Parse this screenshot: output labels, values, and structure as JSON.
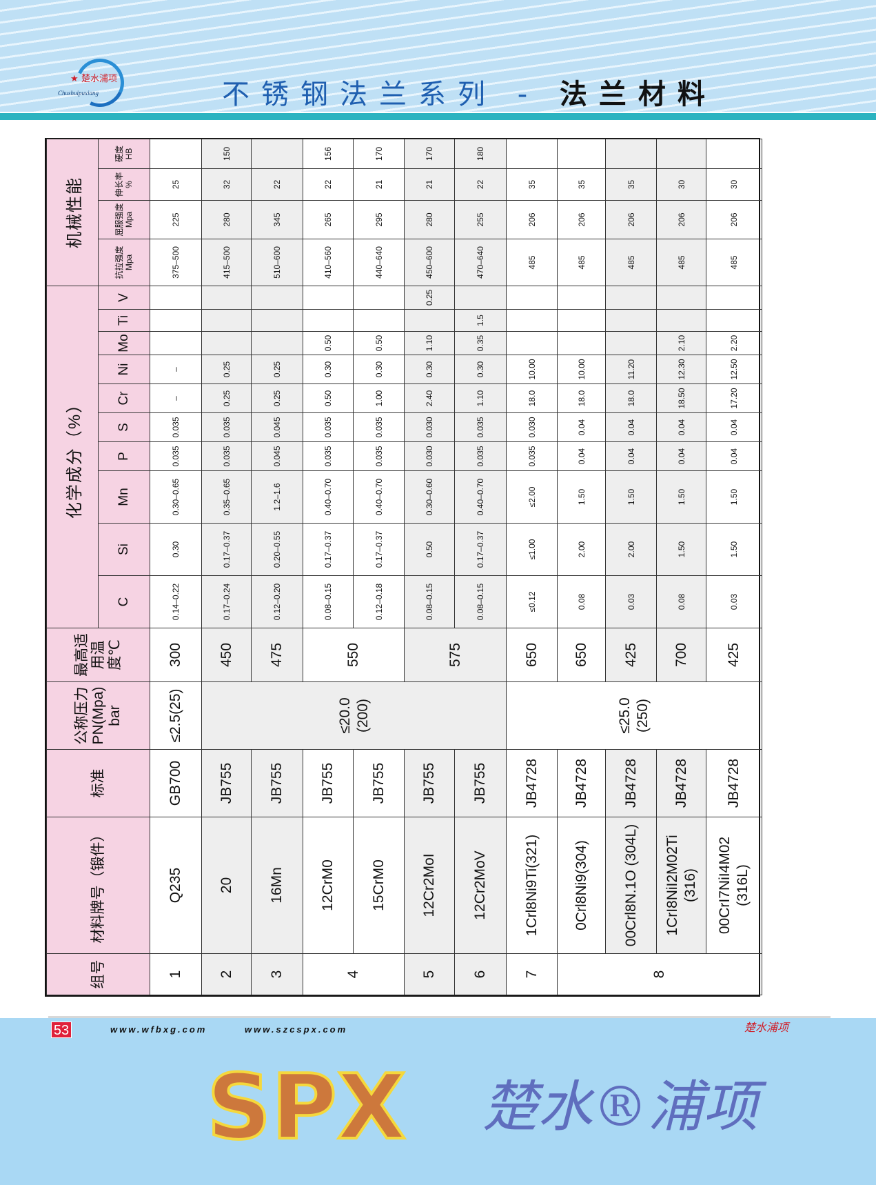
{
  "header": {
    "logo_cn": "楚水浦项",
    "logo_en": "Chushuipuxiang",
    "title_part1": "不锈钢法兰系列 -",
    "title_part2": "法兰材料"
  },
  "table": {
    "headers": {
      "group": "组号",
      "material": "材料牌号（锻件）",
      "standard": "标准",
      "pressure": "公称压力PN(Mpa) bar",
      "temperature": "最高适用温度℃",
      "chem": "化学成分（%）",
      "mech": "机械性能",
      "chem_cols": [
        "C",
        "Si",
        "Mn",
        "P",
        "S",
        "Cr",
        "Ni",
        "Mo",
        "Ti",
        "V"
      ],
      "mech_cols": [
        "抗拉强度 Mpa",
        "屈服强度 Mpa",
        "伸长率 %",
        "硬度 HB"
      ]
    },
    "rows": [
      {
        "group": "1",
        "material": "Q235",
        "standard": "GB700",
        "pressure": "≤2.5(25)",
        "temperature": "300",
        "chem": [
          "0.14–0.22",
          "0.30",
          "0.30–0.65",
          "0.035",
          "0.035",
          "–",
          "–",
          "",
          "",
          ""
        ],
        "mech": [
          "375–500",
          "225",
          "25",
          ""
        ]
      },
      {
        "group": "2",
        "material": "20",
        "standard": "JB755",
        "pressure": "≤20.0 (200)",
        "temperature": "450",
        "chem": [
          "0.17–0.24",
          "0.17–0.37",
          "0.35–0.65",
          "0.035",
          "0.035",
          "0.25",
          "0.25",
          "",
          "",
          ""
        ],
        "mech": [
          "415–500",
          "280",
          "32",
          "150"
        ]
      },
      {
        "group": "3",
        "material": "16Mn",
        "standard": "JB755",
        "temperature": "475",
        "chem": [
          "0.12–0.20",
          "0.20–0.55",
          "1.2–1.6",
          "0.045",
          "0.045",
          "0.25",
          "0.25",
          "",
          "",
          ""
        ],
        "mech": [
          "510–600",
          "345",
          "22",
          ""
        ]
      },
      {
        "group": "4",
        "material": "12CrM0",
        "standard": "JB755",
        "temperature": "550",
        "chem": [
          "0.08–0.15",
          "0.17–0.37",
          "0.40–0.70",
          "0.035",
          "0.035",
          "0.50",
          "0.30",
          "0.50",
          "",
          ""
        ],
        "mech": [
          "410–560",
          "265",
          "22",
          "156"
        ]
      },
      {
        "material": "15CrM0",
        "standard": "JB755",
        "chem": [
          "0.12–0.18",
          "0.17–0.37",
          "0.40–0.70",
          "0.035",
          "0.035",
          "1.00",
          "0.30",
          "0.50",
          "",
          ""
        ],
        "mech": [
          "440–640",
          "295",
          "21",
          "170"
        ]
      },
      {
        "group": "5",
        "material": "12Cr2MoI",
        "standard": "JB755",
        "temperature": "575",
        "chem": [
          "0.08–0.15",
          "0.50",
          "0.30–0.60",
          "0.030",
          "0.030",
          "2.40",
          "0.30",
          "1.10",
          "",
          "0.25"
        ],
        "mech": [
          "450–600",
          "280",
          "21",
          "170"
        ]
      },
      {
        "group": "6",
        "material": "12Cr2MoV",
        "standard": "JB755",
        "chem": [
          "0.08–0.15",
          "0.17–0.37",
          "0.40–0.70",
          "0.035",
          "0.035",
          "1.10",
          "0.30",
          "0.35",
          "1.5",
          ""
        ],
        "mech": [
          "470–640",
          "255",
          "22",
          "180"
        ]
      },
      {
        "group": "7",
        "material": "1Crl8Ni9Ti(321)",
        "standard": "JB4728",
        "pressure": "≤25.0 (250)",
        "temperature": "650",
        "chem": [
          "≤0.12",
          "≤1.00",
          "≤2.00",
          "0.035",
          "0.030",
          "18.0",
          "10.00",
          "",
          "",
          ""
        ],
        "mech": [
          "485",
          "206",
          "35",
          ""
        ]
      },
      {
        "group": "8",
        "material": "0Crl8Ni9(304)",
        "standard": "JB4728",
        "temperature": "650",
        "chem": [
          "0.08",
          "2.00",
          "1.50",
          "0.04",
          "0.04",
          "18.0",
          "10.00",
          "",
          "",
          ""
        ],
        "mech": [
          "485",
          "206",
          "35",
          ""
        ]
      },
      {
        "material": "00Crl8N.1O (304L)",
        "standard": "JB4728",
        "temperature": "425",
        "chem": [
          "0.03",
          "2.00",
          "1.50",
          "0.04",
          "0.04",
          "18.0",
          "11.20",
          "",
          "",
          ""
        ],
        "mech": [
          "485",
          "206",
          "35",
          ""
        ]
      },
      {
        "material": "1CrI8NiI2M02Ti (316)",
        "standard": "JB4728",
        "temperature": "700",
        "chem": [
          "0.08",
          "1.50",
          "1.50",
          "0.04",
          "0.04",
          "18.50",
          "12.30",
          "2.10",
          "",
          ""
        ],
        "mech": [
          "485",
          "206",
          "30",
          ""
        ]
      },
      {
        "material": "00CrI7NiI4M02 (316L)",
        "standard": "JB4728",
        "temperature": "425",
        "chem": [
          "0.03",
          "1.50",
          "1.50",
          "0.04",
          "0.04",
          "17.20",
          "12.50",
          "2.20",
          "",
          ""
        ],
        "mech": [
          "485",
          "206",
          "30",
          ""
        ]
      }
    ]
  },
  "watermark": {
    "logo": "SPX",
    "text": "楚水®浦项"
  },
  "footer": {
    "page": "53",
    "url1": "www.wfbxg.com",
    "url2": "www.szcspx.com",
    "brand": "楚水浦项"
  },
  "colors": {
    "header_pink": "#f6d3e3",
    "shade": "#eeeeee",
    "teal": "#2bb3c0",
    "title_blue": "#1f5fb0",
    "page_red": "#e0203a"
  }
}
